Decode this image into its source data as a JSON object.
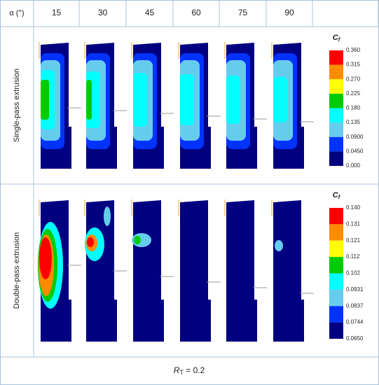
{
  "header": {
    "angle_label": "α (°)",
    "columns": [
      "15",
      "30",
      "45",
      "60",
      "75",
      "90"
    ]
  },
  "rows": [
    {
      "label": "Single-pass extrusion",
      "legend": {
        "symbol": "C",
        "subscript": "f",
        "labels": [
          "0.360",
          "0.315",
          "0.270",
          "0.225",
          "0.180",
          "0.135",
          "0.0900",
          "0.0450",
          "0.000"
        ]
      }
    },
    {
      "label": "Double-pass extrusion",
      "legend": {
        "symbol": "C",
        "subscript": "f",
        "labels": [
          "0.140",
          "0.131",
          "0.121",
          "0.112",
          "0.102",
          "0.0931",
          "0.0837",
          "0.0744",
          "0.0650"
        ]
      }
    }
  ],
  "footer": {
    "symbol": "R",
    "subscript": "T",
    "text": " = 0.2"
  }
}
